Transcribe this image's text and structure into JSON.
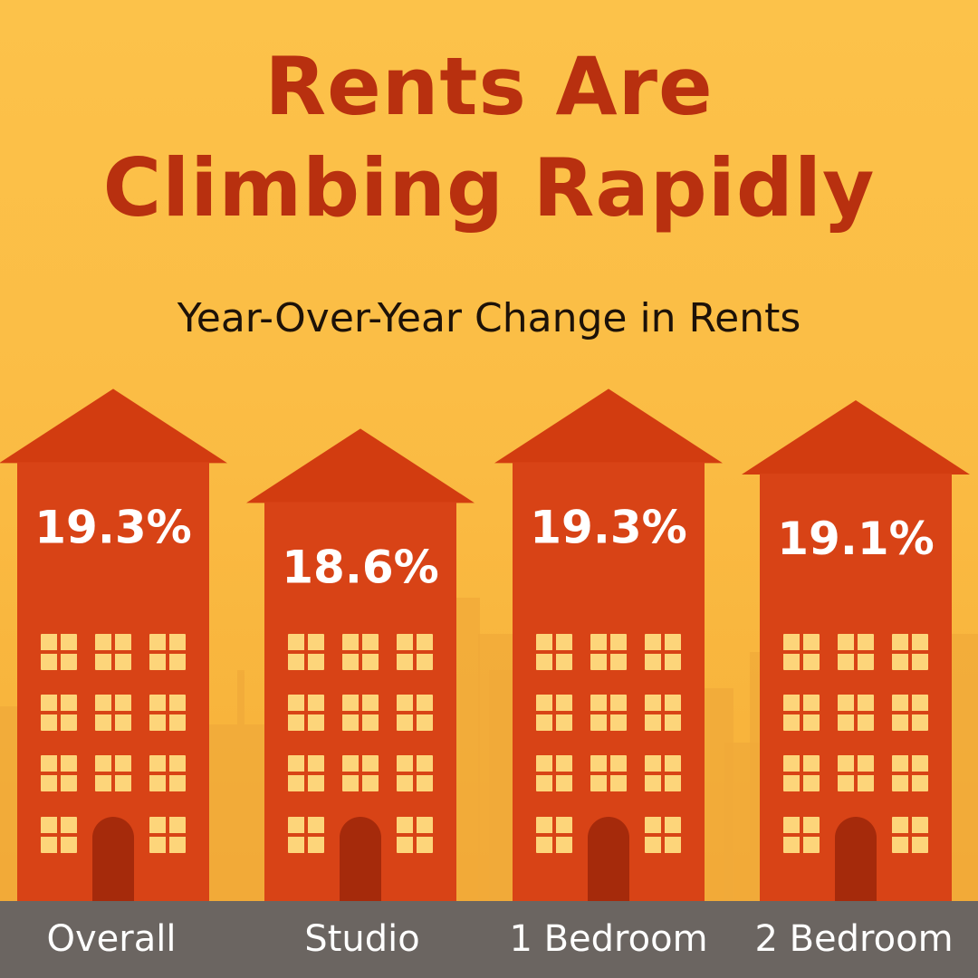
{
  "chart_data": {
    "type": "bar",
    "title": "Rents Are Climbing Rapidly",
    "subtitle": "Year-Over-Year Change in Rents",
    "categories": [
      "Overall",
      "Studio",
      "1 Bedroom",
      "2 Bedroom"
    ],
    "values": [
      19.3,
      18.6,
      19.3,
      19.1
    ],
    "value_labels": [
      "19.3%",
      "18.6%",
      "19.3%",
      "19.1%"
    ],
    "xlabel": "",
    "ylabel": "",
    "grid": false,
    "legend": "none"
  },
  "colors": {
    "background": "#fbbd45",
    "title": "#b8300f",
    "building": "#d84316",
    "building_roof": "#d23c10",
    "window": "#fdd57a",
    "door": "#a52a0b",
    "skyline": "#f0a93a",
    "label_bar": "#6b6561"
  }
}
